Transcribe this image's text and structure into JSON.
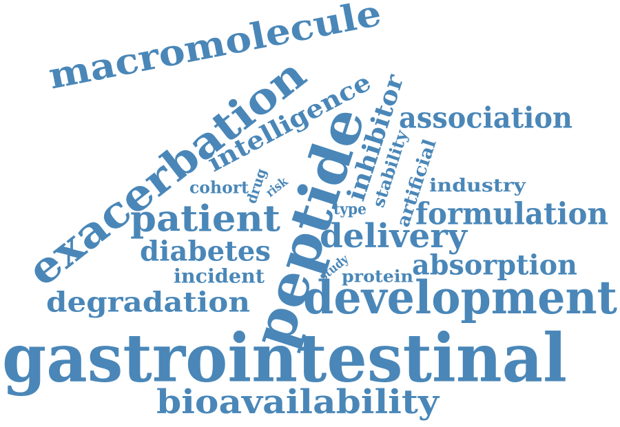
{
  "colors": {
    "word": "#4a87b8",
    "background": "#ffffff"
  },
  "words": [
    {
      "key": "gastrointestinal",
      "text": "gastrointestinal"
    },
    {
      "key": "development",
      "text": "development"
    },
    {
      "key": "peptide",
      "text": "peptide"
    },
    {
      "key": "exacerbation",
      "text": "exacerbation"
    },
    {
      "key": "macromolecule",
      "text": "macromolecule"
    },
    {
      "key": "bioavailability",
      "text": "bioavailability"
    },
    {
      "key": "patient",
      "text": "patient"
    },
    {
      "key": "delivery",
      "text": "delivery"
    },
    {
      "key": "formulation",
      "text": "formulation"
    },
    {
      "key": "association",
      "text": "association"
    },
    {
      "key": "degradation",
      "text": "degradation"
    },
    {
      "key": "absorption",
      "text": "absorption"
    },
    {
      "key": "diabetes",
      "text": "diabetes"
    },
    {
      "key": "intelligence",
      "text": "intelligence"
    },
    {
      "key": "inhibitor",
      "text": "inhibitor"
    },
    {
      "key": "incident",
      "text": "incident"
    },
    {
      "key": "industry",
      "text": "industry"
    },
    {
      "key": "artificial",
      "text": "artificial"
    },
    {
      "key": "stability",
      "text": "stability"
    },
    {
      "key": "cohort",
      "text": "cohort"
    },
    {
      "key": "protein",
      "text": "protein"
    },
    {
      "key": "type",
      "text": "type"
    },
    {
      "key": "drug",
      "text": "drug"
    },
    {
      "key": "risk",
      "text": "risk"
    },
    {
      "key": "study",
      "text": "study"
    }
  ]
}
